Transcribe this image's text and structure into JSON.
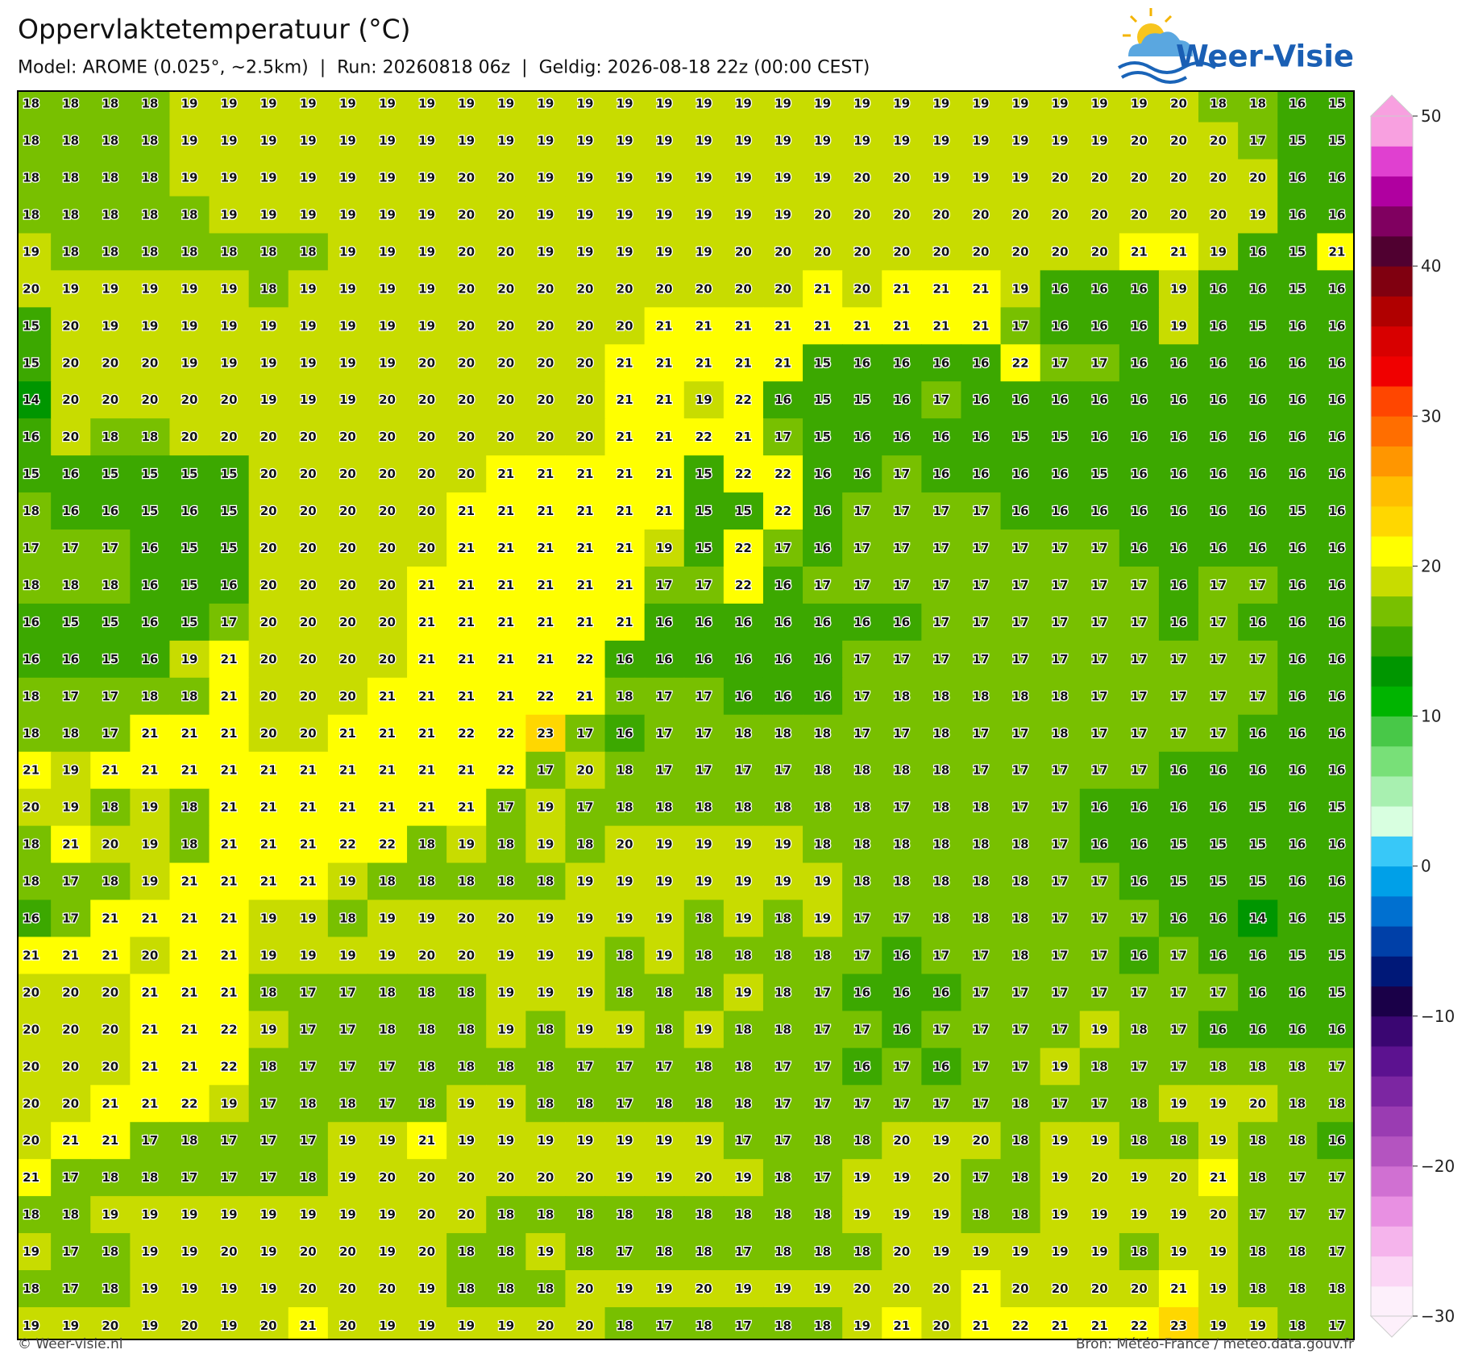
{
  "header": {
    "title": "Oppervlaktetemperatuur (°C)",
    "subtitle": "Model: AROME (0.025°, ~2.5km)  |  Run: 20260818 06z  |  Geldig: 2026-08-18 22z (00:00 CEST)",
    "logo": "Weer-Visie"
  },
  "footer": {
    "left": "© Weer-visie.nl",
    "right": "Bron: Météo-France / meteo.data.gouv.fr"
  },
  "colorbar": {
    "range": [
      -30,
      50
    ],
    "colors": [
      "#fdf0fb",
      "#fbd6f5",
      "#f5b4ec",
      "#e890e2",
      "#d070d2",
      "#b454c0",
      "#9a3cb2",
      "#7c26a2",
      "#5c1290",
      "#3a0672",
      "#1a0048",
      "#001878",
      "#0040a8",
      "#0070d0",
      "#00a0e8",
      "#38c8f8",
      "#d8ffe0",
      "#a8f0b0",
      "#78e078",
      "#48c848",
      "#00b400",
      "#009600",
      "#3ca800",
      "#78c000",
      "#c8dc00",
      "#ffff00",
      "#ffd700",
      "#ffbe00",
      "#ff9600",
      "#ff6e00",
      "#ff4600",
      "#f00000",
      "#d80000",
      "#b00000",
      "#800010",
      "#500030",
      "#800060",
      "#b000a0",
      "#e040d0",
      "#f8a0e0"
    ],
    "ticks": [
      50,
      40,
      30,
      20,
      10,
      0,
      {
        "value": -10,
        "label": "−10"
      },
      {
        "value": -20,
        "label": "−20"
      },
      {
        "value": -30,
        "label": "−30"
      }
    ]
  },
  "grid": {
    "rows": [
      [
        18,
        18,
        18,
        18,
        19,
        19,
        19,
        19,
        19,
        19,
        19,
        19,
        19,
        19,
        19,
        19,
        19,
        19,
        19,
        19,
        19,
        19,
        19,
        19,
        19,
        19,
        19,
        19,
        19,
        20,
        18,
        18,
        16,
        15
      ],
      [
        18,
        18,
        18,
        18,
        19,
        19,
        19,
        19,
        19,
        19,
        19,
        19,
        19,
        19,
        19,
        19,
        19,
        19,
        19,
        19,
        19,
        19,
        19,
        19,
        19,
        19,
        19,
        19,
        20,
        20,
        20,
        17,
        15,
        15
      ],
      [
        18,
        18,
        18,
        18,
        19,
        19,
        19,
        19,
        19,
        19,
        19,
        20,
        20,
        19,
        19,
        19,
        19,
        19,
        19,
        19,
        19,
        20,
        20,
        19,
        19,
        19,
        20,
        20,
        20,
        20,
        20,
        20,
        16,
        16
      ],
      [
        18,
        18,
        18,
        18,
        18,
        19,
        19,
        19,
        19,
        19,
        19,
        20,
        20,
        19,
        19,
        19,
        19,
        19,
        19,
        19,
        20,
        20,
        20,
        20,
        20,
        20,
        20,
        20,
        20,
        20,
        20,
        19,
        16,
        16
      ],
      [
        19,
        18,
        18,
        18,
        18,
        18,
        18,
        18,
        19,
        19,
        19,
        20,
        20,
        19,
        19,
        19,
        19,
        19,
        20,
        20,
        20,
        20,
        20,
        20,
        20,
        20,
        20,
        20,
        21,
        21,
        19,
        16,
        15,
        21
      ],
      [
        20,
        19,
        19,
        19,
        19,
        19,
        18,
        19,
        19,
        19,
        19,
        20,
        20,
        20,
        20,
        20,
        20,
        20,
        20,
        20,
        21,
        20,
        21,
        21,
        21,
        19,
        16,
        16,
        16,
        19,
        16,
        16,
        15,
        16
      ],
      [
        15,
        20,
        19,
        19,
        19,
        19,
        19,
        19,
        19,
        19,
        19,
        20,
        20,
        20,
        20,
        20,
        21,
        21,
        21,
        21,
        21,
        21,
        21,
        21,
        21,
        17,
        16,
        16,
        16,
        19,
        16,
        15,
        16,
        16
      ],
      [
        15,
        20,
        20,
        20,
        19,
        19,
        19,
        19,
        19,
        19,
        20,
        20,
        20,
        20,
        20,
        21,
        21,
        21,
        21,
        21,
        15,
        16,
        16,
        16,
        16,
        22,
        17,
        17,
        16,
        16,
        16,
        16,
        16,
        16
      ],
      [
        14,
        20,
        20,
        20,
        20,
        20,
        19,
        19,
        19,
        20,
        20,
        20,
        20,
        20,
        20,
        21,
        21,
        19,
        22,
        16,
        15,
        15,
        16,
        17,
        16,
        16,
        16,
        16,
        16,
        16,
        16,
        16,
        16,
        16
      ],
      [
        16,
        20,
        18,
        18,
        20,
        20,
        20,
        20,
        20,
        20,
        20,
        20,
        20,
        20,
        20,
        21,
        21,
        22,
        21,
        17,
        15,
        16,
        16,
        16,
        16,
        15,
        15,
        16,
        16,
        16,
        16,
        16,
        16,
        16
      ],
      [
        15,
        16,
        15,
        15,
        15,
        15,
        20,
        20,
        20,
        20,
        20,
        20,
        21,
        21,
        21,
        21,
        21,
        15,
        22,
        22,
        16,
        16,
        17,
        16,
        16,
        16,
        16,
        15,
        16,
        16,
        16,
        16,
        16,
        16
      ],
      [
        18,
        16,
        16,
        15,
        16,
        15,
        20,
        20,
        20,
        20,
        20,
        21,
        21,
        21,
        21,
        21,
        21,
        15,
        15,
        22,
        16,
        17,
        17,
        17,
        17,
        16,
        16,
        16,
        16,
        16,
        16,
        16,
        15,
        16
      ],
      [
        17,
        17,
        17,
        16,
        15,
        15,
        20,
        20,
        20,
        20,
        20,
        21,
        21,
        21,
        21,
        21,
        19,
        15,
        22,
        17,
        16,
        17,
        17,
        17,
        17,
        17,
        17,
        17,
        16,
        16,
        16,
        16,
        16,
        16
      ],
      [
        18,
        18,
        18,
        16,
        15,
        16,
        20,
        20,
        20,
        20,
        21,
        21,
        21,
        21,
        21,
        21,
        17,
        17,
        22,
        16,
        17,
        17,
        17,
        17,
        17,
        17,
        17,
        17,
        17,
        16,
        17,
        17,
        16,
        16
      ],
      [
        16,
        15,
        15,
        16,
        15,
        17,
        20,
        20,
        20,
        20,
        21,
        21,
        21,
        21,
        21,
        21,
        16,
        16,
        16,
        16,
        16,
        16,
        16,
        17,
        17,
        17,
        17,
        17,
        17,
        16,
        17,
        16,
        16,
        16
      ],
      [
        16,
        16,
        15,
        16,
        19,
        21,
        20,
        20,
        20,
        20,
        21,
        21,
        21,
        21,
        22,
        16,
        16,
        16,
        16,
        16,
        16,
        17,
        17,
        17,
        17,
        17,
        17,
        17,
        17,
        17,
        17,
        17,
        16,
        16
      ],
      [
        18,
        17,
        17,
        18,
        18,
        21,
        20,
        20,
        20,
        21,
        21,
        21,
        21,
        22,
        21,
        18,
        17,
        17,
        16,
        16,
        16,
        17,
        18,
        18,
        18,
        18,
        18,
        17,
        17,
        17,
        17,
        17,
        16,
        16
      ],
      [
        18,
        18,
        17,
        21,
        21,
        21,
        20,
        20,
        21,
        21,
        21,
        22,
        22,
        23,
        17,
        16,
        17,
        17,
        18,
        18,
        18,
        17,
        17,
        18,
        17,
        17,
        18,
        17,
        17,
        17,
        17,
        16,
        16,
        16
      ],
      [
        21,
        19,
        21,
        21,
        21,
        21,
        21,
        21,
        21,
        21,
        21,
        21,
        22,
        17,
        20,
        18,
        17,
        17,
        17,
        17,
        18,
        18,
        18,
        18,
        17,
        17,
        17,
        17,
        17,
        16,
        16,
        16,
        16,
        16
      ],
      [
        20,
        19,
        18,
        19,
        18,
        21,
        21,
        21,
        21,
        21,
        21,
        21,
        17,
        19,
        17,
        18,
        18,
        18,
        18,
        18,
        18,
        18,
        17,
        18,
        18,
        17,
        17,
        16,
        16,
        16,
        16,
        15,
        16,
        15
      ],
      [
        18,
        21,
        20,
        19,
        18,
        21,
        21,
        21,
        22,
        22,
        18,
        19,
        18,
        19,
        18,
        20,
        19,
        19,
        19,
        19,
        18,
        18,
        18,
        18,
        18,
        18,
        17,
        16,
        16,
        15,
        15,
        15,
        16,
        16
      ],
      [
        18,
        17,
        18,
        19,
        21,
        21,
        21,
        21,
        19,
        18,
        18,
        18,
        18,
        18,
        19,
        19,
        19,
        19,
        19,
        19,
        19,
        18,
        18,
        18,
        18,
        18,
        17,
        17,
        16,
        15,
        15,
        15,
        16,
        16
      ],
      [
        16,
        17,
        21,
        21,
        21,
        21,
        19,
        19,
        18,
        19,
        19,
        20,
        20,
        19,
        19,
        19,
        19,
        18,
        19,
        18,
        19,
        17,
        17,
        18,
        18,
        18,
        17,
        17,
        17,
        16,
        16,
        14,
        16,
        15
      ],
      [
        21,
        21,
        21,
        20,
        21,
        21,
        19,
        19,
        19,
        19,
        20,
        20,
        19,
        19,
        19,
        18,
        19,
        18,
        18,
        18,
        18,
        17,
        16,
        17,
        17,
        18,
        17,
        17,
        16,
        17,
        16,
        16,
        15,
        15
      ],
      [
        20,
        20,
        20,
        21,
        21,
        21,
        18,
        17,
        17,
        18,
        18,
        18,
        19,
        19,
        19,
        18,
        18,
        18,
        19,
        18,
        17,
        16,
        16,
        16,
        17,
        17,
        17,
        17,
        17,
        17,
        17,
        16,
        16,
        15
      ],
      [
        20,
        20,
        20,
        21,
        21,
        22,
        19,
        17,
        17,
        18,
        18,
        18,
        19,
        18,
        19,
        19,
        18,
        19,
        18,
        18,
        17,
        17,
        16,
        17,
        17,
        17,
        17,
        19,
        18,
        17,
        16,
        16,
        16,
        16
      ],
      [
        20,
        20,
        20,
        21,
        21,
        22,
        18,
        17,
        17,
        17,
        18,
        18,
        18,
        18,
        17,
        17,
        17,
        18,
        18,
        17,
        17,
        16,
        17,
        16,
        17,
        17,
        19,
        18,
        17,
        17,
        18,
        18,
        18,
        17
      ],
      [
        20,
        20,
        21,
        21,
        22,
        19,
        17,
        18,
        18,
        17,
        18,
        19,
        19,
        18,
        18,
        17,
        18,
        18,
        18,
        17,
        17,
        17,
        17,
        17,
        17,
        18,
        17,
        17,
        18,
        19,
        19,
        20,
        18,
        18
      ],
      [
        20,
        21,
        21,
        17,
        18,
        17,
        17,
        17,
        19,
        19,
        21,
        19,
        19,
        19,
        19,
        19,
        19,
        19,
        17,
        17,
        18,
        18,
        20,
        19,
        20,
        18,
        19,
        19,
        18,
        18,
        19,
        18,
        18,
        16
      ],
      [
        21,
        17,
        18,
        18,
        17,
        17,
        17,
        18,
        19,
        20,
        20,
        20,
        20,
        20,
        20,
        19,
        19,
        20,
        19,
        18,
        17,
        19,
        19,
        20,
        17,
        18,
        19,
        20,
        19,
        20,
        21,
        18,
        17,
        17
      ],
      [
        18,
        18,
        19,
        19,
        19,
        19,
        19,
        19,
        19,
        19,
        20,
        20,
        18,
        18,
        18,
        18,
        18,
        18,
        18,
        18,
        18,
        19,
        19,
        19,
        18,
        18,
        19,
        19,
        19,
        19,
        20,
        17,
        17,
        17
      ],
      [
        19,
        17,
        18,
        19,
        19,
        20,
        19,
        20,
        20,
        19,
        20,
        18,
        18,
        19,
        18,
        17,
        18,
        18,
        17,
        18,
        18,
        18,
        20,
        19,
        19,
        19,
        19,
        19,
        18,
        19,
        19,
        18,
        18,
        17
      ],
      [
        18,
        17,
        18,
        19,
        19,
        19,
        19,
        20,
        20,
        20,
        19,
        18,
        18,
        18,
        20,
        19,
        19,
        20,
        19,
        19,
        19,
        20,
        20,
        20,
        21,
        20,
        20,
        20,
        20,
        21,
        19,
        18,
        18,
        18
      ],
      [
        19,
        19,
        20,
        19,
        20,
        19,
        20,
        21,
        20,
        19,
        19,
        19,
        19,
        20,
        20,
        18,
        17,
        18,
        17,
        18,
        18,
        19,
        21,
        20,
        21,
        22,
        21,
        21,
        22,
        23,
        19,
        19,
        18,
        17
      ]
    ]
  }
}
